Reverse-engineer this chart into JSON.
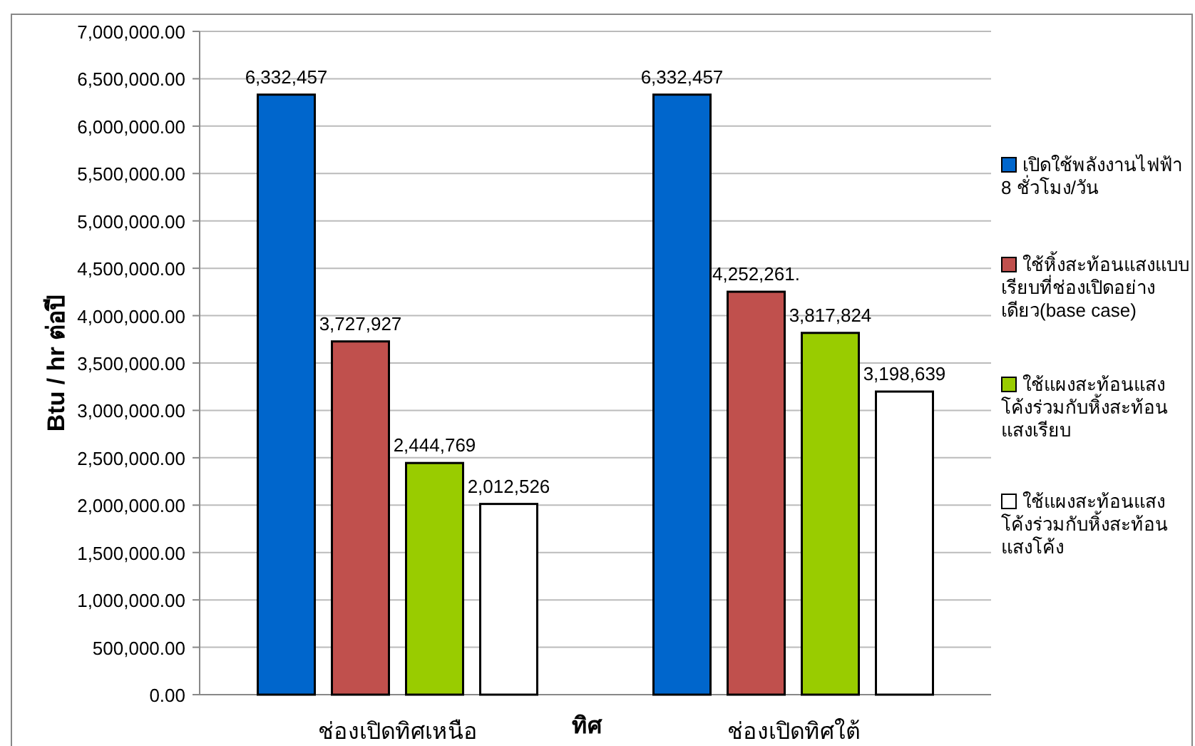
{
  "chart_data": {
    "type": "bar",
    "xlabel": "ทิศ",
    "ylabel": "Btu / hr ต่อปี",
    "categories": [
      "ช่องเปิดทิศเหนือ",
      "ช่องเปิดทิศใต้"
    ],
    "series": [
      {
        "name": "เปิดใช้พลังงานไฟฟ้า 8 ชั่วโมง/วัน",
        "color": "#0066cc",
        "values": [
          6332457,
          6332457
        ],
        "value_labels": [
          "6,332,457",
          "6,332,457"
        ]
      },
      {
        "name": "ใช้หิ้งสะท้อนแสงแบบเรียบที่ช่องเปิดอย่างเดียว(base case)",
        "color": "#c0504d",
        "values": [
          3727927,
          4252261
        ],
        "value_labels": [
          "3,727,927",
          "4,252,261."
        ]
      },
      {
        "name": "ใช้แผงสะท้อนแสงโค้งร่วมกับหิ้งสะท้อนแสงเรียบ",
        "color": "#99cc00",
        "values": [
          2444769,
          3817824
        ],
        "value_labels": [
          "2,444,769",
          "3,817,824"
        ]
      },
      {
        "name": "ใช้แผงสะท้อนแสงโค้งร่วมกับหิ้งสะท้อนแสงโค้ง",
        "color": "#ffffff",
        "values": [
          2012526,
          3198639
        ],
        "value_labels": [
          "2,012,526",
          "3,198,639"
        ]
      }
    ],
    "ylim": [
      0,
      7000000
    ],
    "yticks": [
      {
        "value": 0,
        "label": "0.00"
      },
      {
        "value": 500000,
        "label": "500,000.00"
      },
      {
        "value": 1000000,
        "label": "1,000,000.00"
      },
      {
        "value": 1500000,
        "label": "1,500,000.00"
      },
      {
        "value": 2000000,
        "label": "2,000,000.00"
      },
      {
        "value": 2500000,
        "label": "2,500,000.00"
      },
      {
        "value": 3000000,
        "label": "3,000,000.00"
      },
      {
        "value": 3500000,
        "label": "3,500,000.00"
      },
      {
        "value": 4000000,
        "label": "4,000,000.00"
      },
      {
        "value": 4500000,
        "label": "4,500,000.00"
      },
      {
        "value": 5000000,
        "label": "5,000,000.00"
      },
      {
        "value": 5500000,
        "label": "5,500,000.00"
      },
      {
        "value": 6000000,
        "label": "6,000,000.00"
      },
      {
        "value": 6500000,
        "label": "6,500,000.00"
      },
      {
        "value": 7000000,
        "label": "7,000,000.00"
      }
    ],
    "grid": "y",
    "legend": "right"
  }
}
